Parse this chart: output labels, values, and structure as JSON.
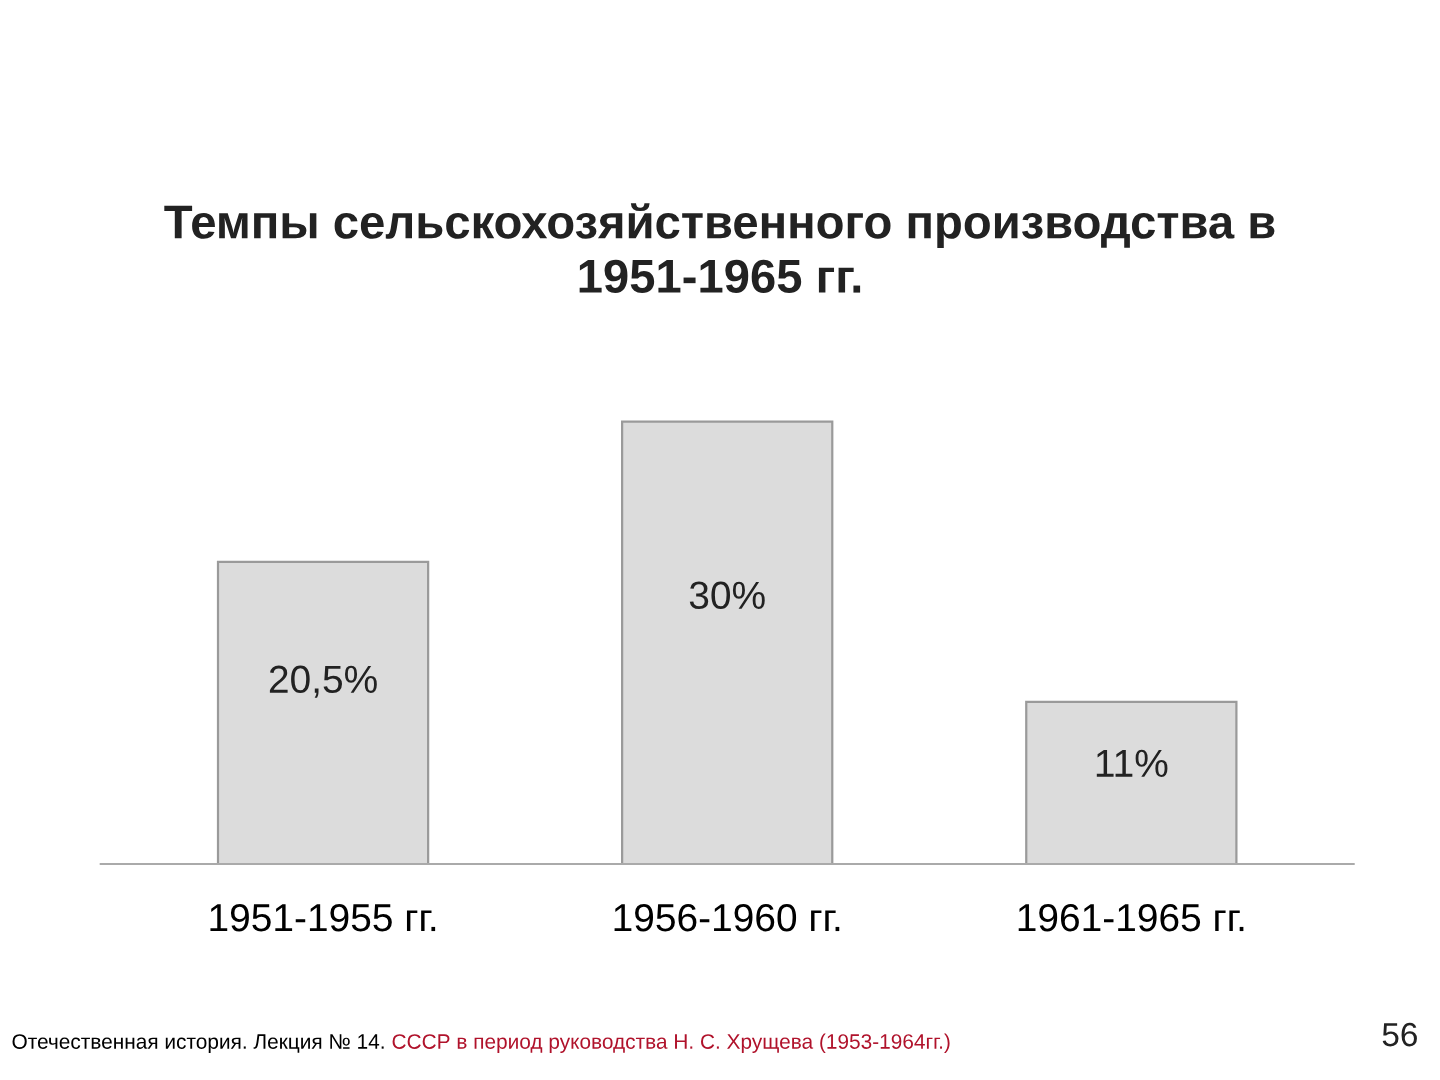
{
  "chart_data": {
    "type": "bar",
    "title": "Темпы сельскохозяйственного производства в\n1951-1965 гг.",
    "categories": [
      "1951-1955 гг.",
      "1956-1960 гг.",
      "1961-1965 гг."
    ],
    "values": [
      20.5,
      30,
      11
    ],
    "value_labels": [
      "20,5%",
      "30%",
      "11%"
    ],
    "color": "#dcdcdc",
    "grid": false,
    "legend": false,
    "annotations": [
      "Отечественная история. Лекция № 14.",
      "СССР в период руководства Н. С. Хрущева (1953-1964гг.)",
      "56"
    ]
  }
}
